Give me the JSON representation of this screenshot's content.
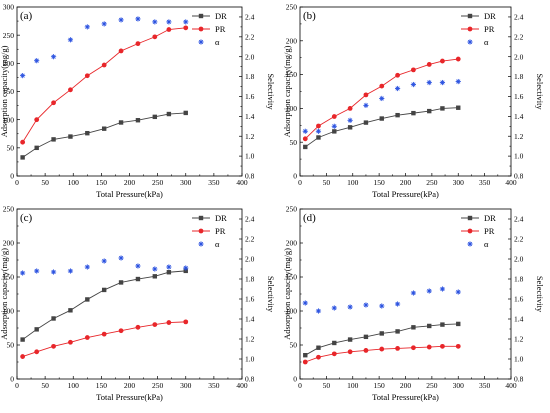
{
  "chart_data": [
    {
      "type": "scatter",
      "panel_label": "(a)",
      "xlabel": "Total Pressure(kPa)",
      "ylabel": "Adsorption capacity(mg/g)",
      "y2label": "Selectivity",
      "xlim": [
        0,
        400
      ],
      "ylim": [
        0,
        300
      ],
      "y2lim": [
        0.8,
        2.5
      ],
      "x_ticks": [
        0,
        50,
        100,
        150,
        200,
        250,
        300,
        350,
        400
      ],
      "y_ticks": [
        0,
        50,
        100,
        150,
        200,
        250,
        300
      ],
      "y2_ticks": [
        0.8,
        1.0,
        1.2,
        1.4,
        1.6,
        1.8,
        2.0,
        2.2,
        2.4
      ],
      "legend_position": "top-right",
      "series": [
        {
          "name": "DR",
          "axis": "left",
          "marker": "square",
          "color": "#444444",
          "line": true,
          "x": [
            10,
            35,
            65,
            95,
            125,
            155,
            185,
            215,
            245,
            270,
            300
          ],
          "y": [
            33,
            50,
            65,
            70,
            76,
            84,
            95,
            99,
            105,
            110,
            112
          ]
        },
        {
          "name": "PR",
          "axis": "left",
          "marker": "circle",
          "color": "#e8262a",
          "line": true,
          "x": [
            10,
            35,
            65,
            95,
            125,
            155,
            185,
            215,
            245,
            270,
            300
          ],
          "y": [
            60,
            100,
            130,
            153,
            178,
            197,
            222,
            235,
            247,
            260,
            263
          ]
        },
        {
          "name": "α",
          "axis": "right",
          "marker": "asterisk",
          "color": "#2b52e0",
          "line": false,
          "x": [
            10,
            35,
            65,
            95,
            125,
            155,
            185,
            215,
            245,
            270,
            300
          ],
          "y": [
            1.81,
            1.96,
            2.0,
            2.17,
            2.3,
            2.33,
            2.37,
            2.38,
            2.35,
            2.35,
            2.35
          ]
        }
      ]
    },
    {
      "type": "scatter",
      "panel_label": "(b)",
      "xlabel": "Total Pressure(kPa)",
      "ylabel": "Adsorption capacity(mg/g)",
      "y2label": "Selectivity",
      "xlim": [
        0,
        400
      ],
      "ylim": [
        0,
        250
      ],
      "y2lim": [
        0.8,
        2.5
      ],
      "x_ticks": [
        0,
        50,
        100,
        150,
        200,
        250,
        300,
        350,
        400
      ],
      "y_ticks": [
        0,
        50,
        100,
        150,
        200,
        250
      ],
      "y2_ticks": [
        0.8,
        1.0,
        1.2,
        1.4,
        1.6,
        1.8,
        2.0,
        2.2,
        2.4
      ],
      "legend_position": "top-right",
      "series": [
        {
          "name": "DR",
          "axis": "left",
          "marker": "square",
          "color": "#444444",
          "line": true,
          "x": [
            10,
            35,
            65,
            95,
            125,
            155,
            185,
            215,
            245,
            270,
            300
          ],
          "y": [
            43,
            57,
            66,
            72,
            79,
            85,
            90,
            93,
            96,
            100,
            101
          ]
        },
        {
          "name": "PR",
          "axis": "left",
          "marker": "circle",
          "color": "#e8262a",
          "line": true,
          "x": [
            10,
            35,
            65,
            95,
            125,
            155,
            185,
            215,
            245,
            270,
            300
          ],
          "y": [
            55,
            74,
            88,
            100,
            120,
            133,
            149,
            157,
            165,
            170,
            173
          ]
        },
        {
          "name": "α",
          "axis": "right",
          "marker": "asterisk",
          "color": "#2b52e0",
          "line": false,
          "x": [
            10,
            35,
            65,
            95,
            125,
            155,
            185,
            215,
            245,
            270,
            300
          ],
          "y": [
            1.25,
            1.25,
            1.3,
            1.36,
            1.51,
            1.58,
            1.68,
            1.72,
            1.74,
            1.74,
            1.75
          ]
        }
      ]
    },
    {
      "type": "scatter",
      "panel_label": "(c)",
      "xlabel": "Total Pressure(kPa)",
      "ylabel": "Adsorption capacity(mg/g)",
      "y2label": "Selectivity",
      "xlim": [
        0,
        400
      ],
      "ylim": [
        0,
        250
      ],
      "y2lim": [
        0.8,
        2.5
      ],
      "x_ticks": [
        0,
        50,
        100,
        150,
        200,
        250,
        300,
        350,
        400
      ],
      "y_ticks": [
        0,
        50,
        100,
        150,
        200,
        250
      ],
      "y2_ticks": [
        0.8,
        1.0,
        1.2,
        1.4,
        1.6,
        1.8,
        2.0,
        2.2,
        2.4
      ],
      "legend_position": "top-right",
      "series": [
        {
          "name": "DR",
          "axis": "left",
          "marker": "square",
          "color": "#444444",
          "line": true,
          "x": [
            10,
            35,
            65,
            95,
            125,
            155,
            185,
            215,
            245,
            270,
            300
          ],
          "y": [
            58,
            73,
            89,
            101,
            117,
            131,
            142,
            147,
            151,
            157,
            159
          ]
        },
        {
          "name": "PR",
          "axis": "left",
          "marker": "circle",
          "color": "#e8262a",
          "line": true,
          "x": [
            10,
            35,
            65,
            95,
            125,
            155,
            185,
            215,
            245,
            270,
            300
          ],
          "y": [
            33,
            40,
            48,
            54,
            61,
            66,
            71,
            76,
            80,
            83,
            84
          ]
        },
        {
          "name": "α",
          "axis": "right",
          "marker": "asterisk",
          "color": "#2b52e0",
          "line": false,
          "x": [
            10,
            35,
            65,
            95,
            125,
            155,
            185,
            215,
            245,
            270,
            300
          ],
          "y": [
            1.86,
            1.88,
            1.87,
            1.88,
            1.92,
            1.98,
            2.01,
            1.93,
            1.9,
            1.92,
            1.91
          ]
        }
      ]
    },
    {
      "type": "scatter",
      "panel_label": "(d)",
      "xlabel": "Total Pressure(kPa)",
      "ylabel": "Adsorption capacity(mg/g)",
      "y2label": "Selectivity",
      "xlim": [
        0,
        400
      ],
      "ylim": [
        0,
        250
      ],
      "y2lim": [
        0.8,
        2.5
      ],
      "x_ticks": [
        0,
        50,
        100,
        150,
        200,
        250,
        300,
        350,
        400
      ],
      "y_ticks": [
        0,
        50,
        100,
        150,
        200,
        250
      ],
      "y2_ticks": [
        0.8,
        1.0,
        1.2,
        1.4,
        1.6,
        1.8,
        2.0,
        2.2,
        2.4
      ],
      "legend_position": "top-right",
      "series": [
        {
          "name": "DR",
          "axis": "left",
          "marker": "square",
          "color": "#444444",
          "line": true,
          "x": [
            10,
            35,
            65,
            95,
            125,
            155,
            185,
            215,
            245,
            270,
            300
          ],
          "y": [
            35,
            46,
            53,
            58,
            62,
            67,
            70,
            76,
            78,
            80,
            81
          ]
        },
        {
          "name": "PR",
          "axis": "left",
          "marker": "circle",
          "color": "#e8262a",
          "line": true,
          "x": [
            10,
            35,
            65,
            95,
            125,
            155,
            185,
            215,
            245,
            270,
            300
          ],
          "y": [
            25,
            32,
            37,
            40,
            42,
            44,
            45,
            46,
            47,
            48,
            48
          ]
        },
        {
          "name": "α",
          "axis": "right",
          "marker": "asterisk",
          "color": "#2b52e0",
          "line": false,
          "x": [
            10,
            35,
            65,
            95,
            125,
            155,
            185,
            215,
            245,
            270,
            300
          ],
          "y": [
            1.56,
            1.48,
            1.51,
            1.52,
            1.54,
            1.53,
            1.55,
            1.66,
            1.68,
            1.7,
            1.67
          ]
        }
      ]
    }
  ]
}
